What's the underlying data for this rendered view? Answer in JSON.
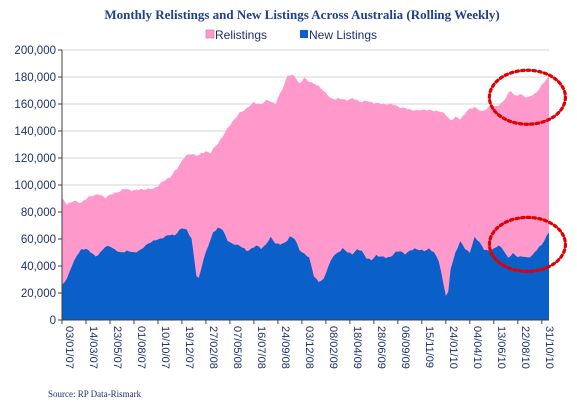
{
  "chart_data": {
    "type": "area",
    "title": "Monthly Relistings and New Listings Across Australia (Rolling Weekly)",
    "source": "Source: RP Data-Rismark",
    "ylim": [
      0,
      200000
    ],
    "yticks": [
      "200,000",
      "180,000",
      "160,000",
      "140,000",
      "120,000",
      "100,000",
      "80,000",
      "60,000",
      "40,000",
      "20,000",
      "0"
    ],
    "ytick_values": [
      200000,
      180000,
      160000,
      140000,
      120000,
      100000,
      80000,
      60000,
      40000,
      20000,
      0
    ],
    "xticks": [
      "03/01/07",
      "14/03/07",
      "23/05/07",
      "01/08/07",
      "10/10/07",
      "19/12/07",
      "27/02/08",
      "07/05/08",
      "16/07/08",
      "24/09/08",
      "03/12/08",
      "08/02/09",
      "18/04/09",
      "28/06/09",
      "06/09/09",
      "15/11/09",
      "24/01/10",
      "04/04/10",
      "13/06/10",
      "22/08/10",
      "31/10/10"
    ],
    "xtick_index": [
      0,
      10,
      20,
      30,
      40,
      50,
      60,
      70,
      80,
      90,
      100,
      110,
      120,
      130,
      140,
      150,
      160,
      170,
      180,
      190,
      200
    ],
    "grid": true,
    "legend": "top-center",
    "colors": {
      "Relistings": "#ff99cc",
      "New Listings": "#0a5fc8",
      "annotation": "#e00000"
    },
    "series": [
      {
        "name": "Relistings",
        "key_points": [
          [
            0,
            90000
          ],
          [
            2,
            86000
          ],
          [
            5,
            88000
          ],
          [
            8,
            87000
          ],
          [
            12,
            92000
          ],
          [
            15,
            93000
          ],
          [
            18,
            91000
          ],
          [
            22,
            94000
          ],
          [
            26,
            97000
          ],
          [
            30,
            96000
          ],
          [
            34,
            97000
          ],
          [
            38,
            97000
          ],
          [
            41,
            101000
          ],
          [
            45,
            106000
          ],
          [
            48,
            112000
          ],
          [
            51,
            121000
          ],
          [
            54,
            123000
          ],
          [
            57,
            122000
          ],
          [
            60,
            125000
          ],
          [
            62,
            124000
          ],
          [
            65,
            131000
          ],
          [
            68,
            139000
          ],
          [
            71,
            147000
          ],
          [
            74,
            153000
          ],
          [
            77,
            157000
          ],
          [
            80,
            161000
          ],
          [
            83,
            160000
          ],
          [
            86,
            163000
          ],
          [
            89,
            160000
          ],
          [
            92,
            172000
          ],
          [
            94,
            181000
          ],
          [
            97,
            181000
          ],
          [
            99,
            175000
          ],
          [
            101,
            179000
          ],
          [
            104,
            176000
          ],
          [
            108,
            172000
          ],
          [
            112,
            164000
          ],
          [
            115,
            164000
          ],
          [
            118,
            163000
          ],
          [
            121,
            164000
          ],
          [
            124,
            162000
          ],
          [
            127,
            162000
          ],
          [
            130,
            161000
          ],
          [
            133,
            160000
          ],
          [
            136,
            160000
          ],
          [
            139,
            159000
          ],
          [
            142,
            157000
          ],
          [
            145,
            156000
          ],
          [
            148,
            155000
          ],
          [
            151,
            156000
          ],
          [
            154,
            155000
          ],
          [
            157,
            155000
          ],
          [
            160,
            152000
          ],
          [
            162,
            148000
          ],
          [
            164,
            150000
          ],
          [
            166,
            149000
          ],
          [
            169,
            155000
          ],
          [
            172,
            158000
          ],
          [
            175,
            154000
          ],
          [
            178,
            158000
          ],
          [
            181,
            158000
          ],
          [
            184,
            162000
          ],
          [
            187,
            170000
          ],
          [
            189,
            166000
          ],
          [
            191,
            167000
          ],
          [
            194,
            165000
          ],
          [
            197,
            167000
          ],
          [
            200,
            174000
          ],
          [
            203,
            180000
          ]
        ]
      },
      {
        "name": "New Listings",
        "key_points": [
          [
            0,
            26000
          ],
          [
            2,
            30000
          ],
          [
            4,
            40000
          ],
          [
            6,
            47000
          ],
          [
            8,
            52000
          ],
          [
            10,
            53000
          ],
          [
            12,
            50000
          ],
          [
            14,
            47000
          ],
          [
            16,
            50000
          ],
          [
            18,
            54000
          ],
          [
            20,
            55000
          ],
          [
            22,
            52000
          ],
          [
            24,
            50000
          ],
          [
            27,
            51000
          ],
          [
            30,
            50000
          ],
          [
            33,
            52000
          ],
          [
            36,
            57000
          ],
          [
            39,
            59000
          ],
          [
            42,
            61000
          ],
          [
            45,
            63000
          ],
          [
            47,
            63000
          ],
          [
            50,
            68000
          ],
          [
            52,
            67000
          ],
          [
            54,
            60000
          ],
          [
            56,
            33000
          ],
          [
            57,
            31000
          ],
          [
            59,
            45000
          ],
          [
            61,
            55000
          ],
          [
            63,
            65000
          ],
          [
            65,
            68000
          ],
          [
            67,
            67000
          ],
          [
            69,
            59000
          ],
          [
            71,
            56000
          ],
          [
            73,
            56000
          ],
          [
            75,
            54000
          ],
          [
            77,
            51000
          ],
          [
            79,
            53000
          ],
          [
            81,
            55000
          ],
          [
            83,
            53000
          ],
          [
            85,
            56000
          ],
          [
            87,
            61000
          ],
          [
            89,
            57000
          ],
          [
            91,
            56000
          ],
          [
            93,
            57000
          ],
          [
            95,
            62000
          ],
          [
            97,
            60000
          ],
          [
            99,
            52000
          ],
          [
            101,
            49000
          ],
          [
            103,
            46000
          ],
          [
            105,
            33000
          ],
          [
            107,
            28000
          ],
          [
            109,
            30000
          ],
          [
            111,
            40000
          ],
          [
            113,
            47000
          ],
          [
            115,
            50000
          ],
          [
            117,
            53000
          ],
          [
            119,
            50000
          ],
          [
            121,
            49000
          ],
          [
            123,
            52000
          ],
          [
            125,
            51000
          ],
          [
            127,
            46000
          ],
          [
            129,
            44000
          ],
          [
            131,
            48000
          ],
          [
            133,
            47000
          ],
          [
            135,
            46000
          ],
          [
            137,
            47000
          ],
          [
            139,
            50000
          ],
          [
            141,
            51000
          ],
          [
            143,
            49000
          ],
          [
            145,
            51000
          ],
          [
            147,
            53000
          ],
          [
            149,
            52000
          ],
          [
            151,
            51000
          ],
          [
            153,
            53000
          ],
          [
            155,
            50000
          ],
          [
            157,
            44000
          ],
          [
            158,
            36000
          ],
          [
            160,
            18000
          ],
          [
            161,
            20000
          ],
          [
            162,
            38000
          ],
          [
            164,
            50000
          ],
          [
            166,
            58000
          ],
          [
            168,
            53000
          ],
          [
            170,
            50000
          ],
          [
            172,
            61000
          ],
          [
            174,
            58000
          ],
          [
            176,
            52000
          ],
          [
            178,
            51000
          ],
          [
            180,
            53000
          ],
          [
            182,
            55000
          ],
          [
            184,
            52000
          ],
          [
            186,
            46000
          ],
          [
            188,
            49000
          ],
          [
            190,
            47000
          ],
          [
            192,
            47000
          ],
          [
            194,
            46000
          ],
          [
            196,
            48000
          ],
          [
            198,
            52000
          ],
          [
            200,
            56000
          ],
          [
            202,
            62000
          ],
          [
            203,
            65000
          ]
        ]
      }
    ],
    "annotations": [
      "circle-relistings-end",
      "circle-new-listings-end"
    ]
  }
}
